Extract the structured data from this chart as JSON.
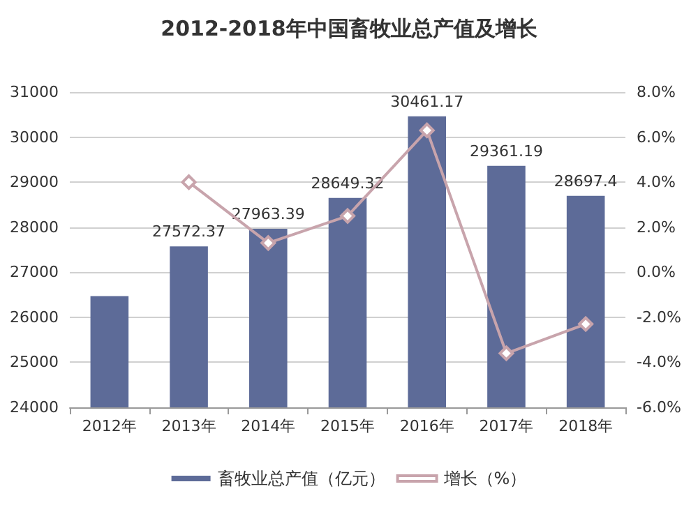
{
  "chart_data": {
    "type": "bar",
    "title": "2012-2018年中国畜牧业总产值及增长",
    "categories": [
      "2012年",
      "2013年",
      "2014年",
      "2015年",
      "2016年",
      "2017年",
      "2018年"
    ],
    "series": [
      {
        "name": "畜牧业总产值（亿元）",
        "color": "#5d6b98",
        "values": [
          26470,
          27572.37,
          27963.39,
          28649.32,
          30461.17,
          29361.19,
          28697.4
        ],
        "value_labels": [
          null,
          "27572.37",
          "27963.39",
          "28649.32",
          "30461.17",
          "29361.19",
          "28697.4"
        ]
      },
      {
        "name": "增长（%）",
        "type": "line",
        "axis": "y2",
        "color": "#c8a4ac",
        "marker": "diamond",
        "values": [
          null,
          4.0,
          1.3,
          2.5,
          6.3,
          -3.6,
          -2.3
        ]
      }
    ],
    "ylim": [
      24000,
      31000
    ],
    "yticks": [
      24000,
      25000,
      26000,
      27000,
      28000,
      29000,
      30000,
      31000
    ],
    "y2lim": [
      -6,
      8
    ],
    "y2ticks": [
      {
        "value": -6,
        "label": "-6.0%"
      },
      {
        "value": -4,
        "label": "-4.0%"
      },
      {
        "value": -2,
        "label": "-2.0%"
      },
      {
        "value": 0,
        "label": "0.0%"
      },
      {
        "value": 2,
        "label": "2.0%"
      },
      {
        "value": 4,
        "label": "4.0%"
      },
      {
        "value": 6,
        "label": "6.0%"
      },
      {
        "value": 8,
        "label": "8.0%"
      }
    ],
    "grid": "y",
    "legend": "bottom"
  }
}
